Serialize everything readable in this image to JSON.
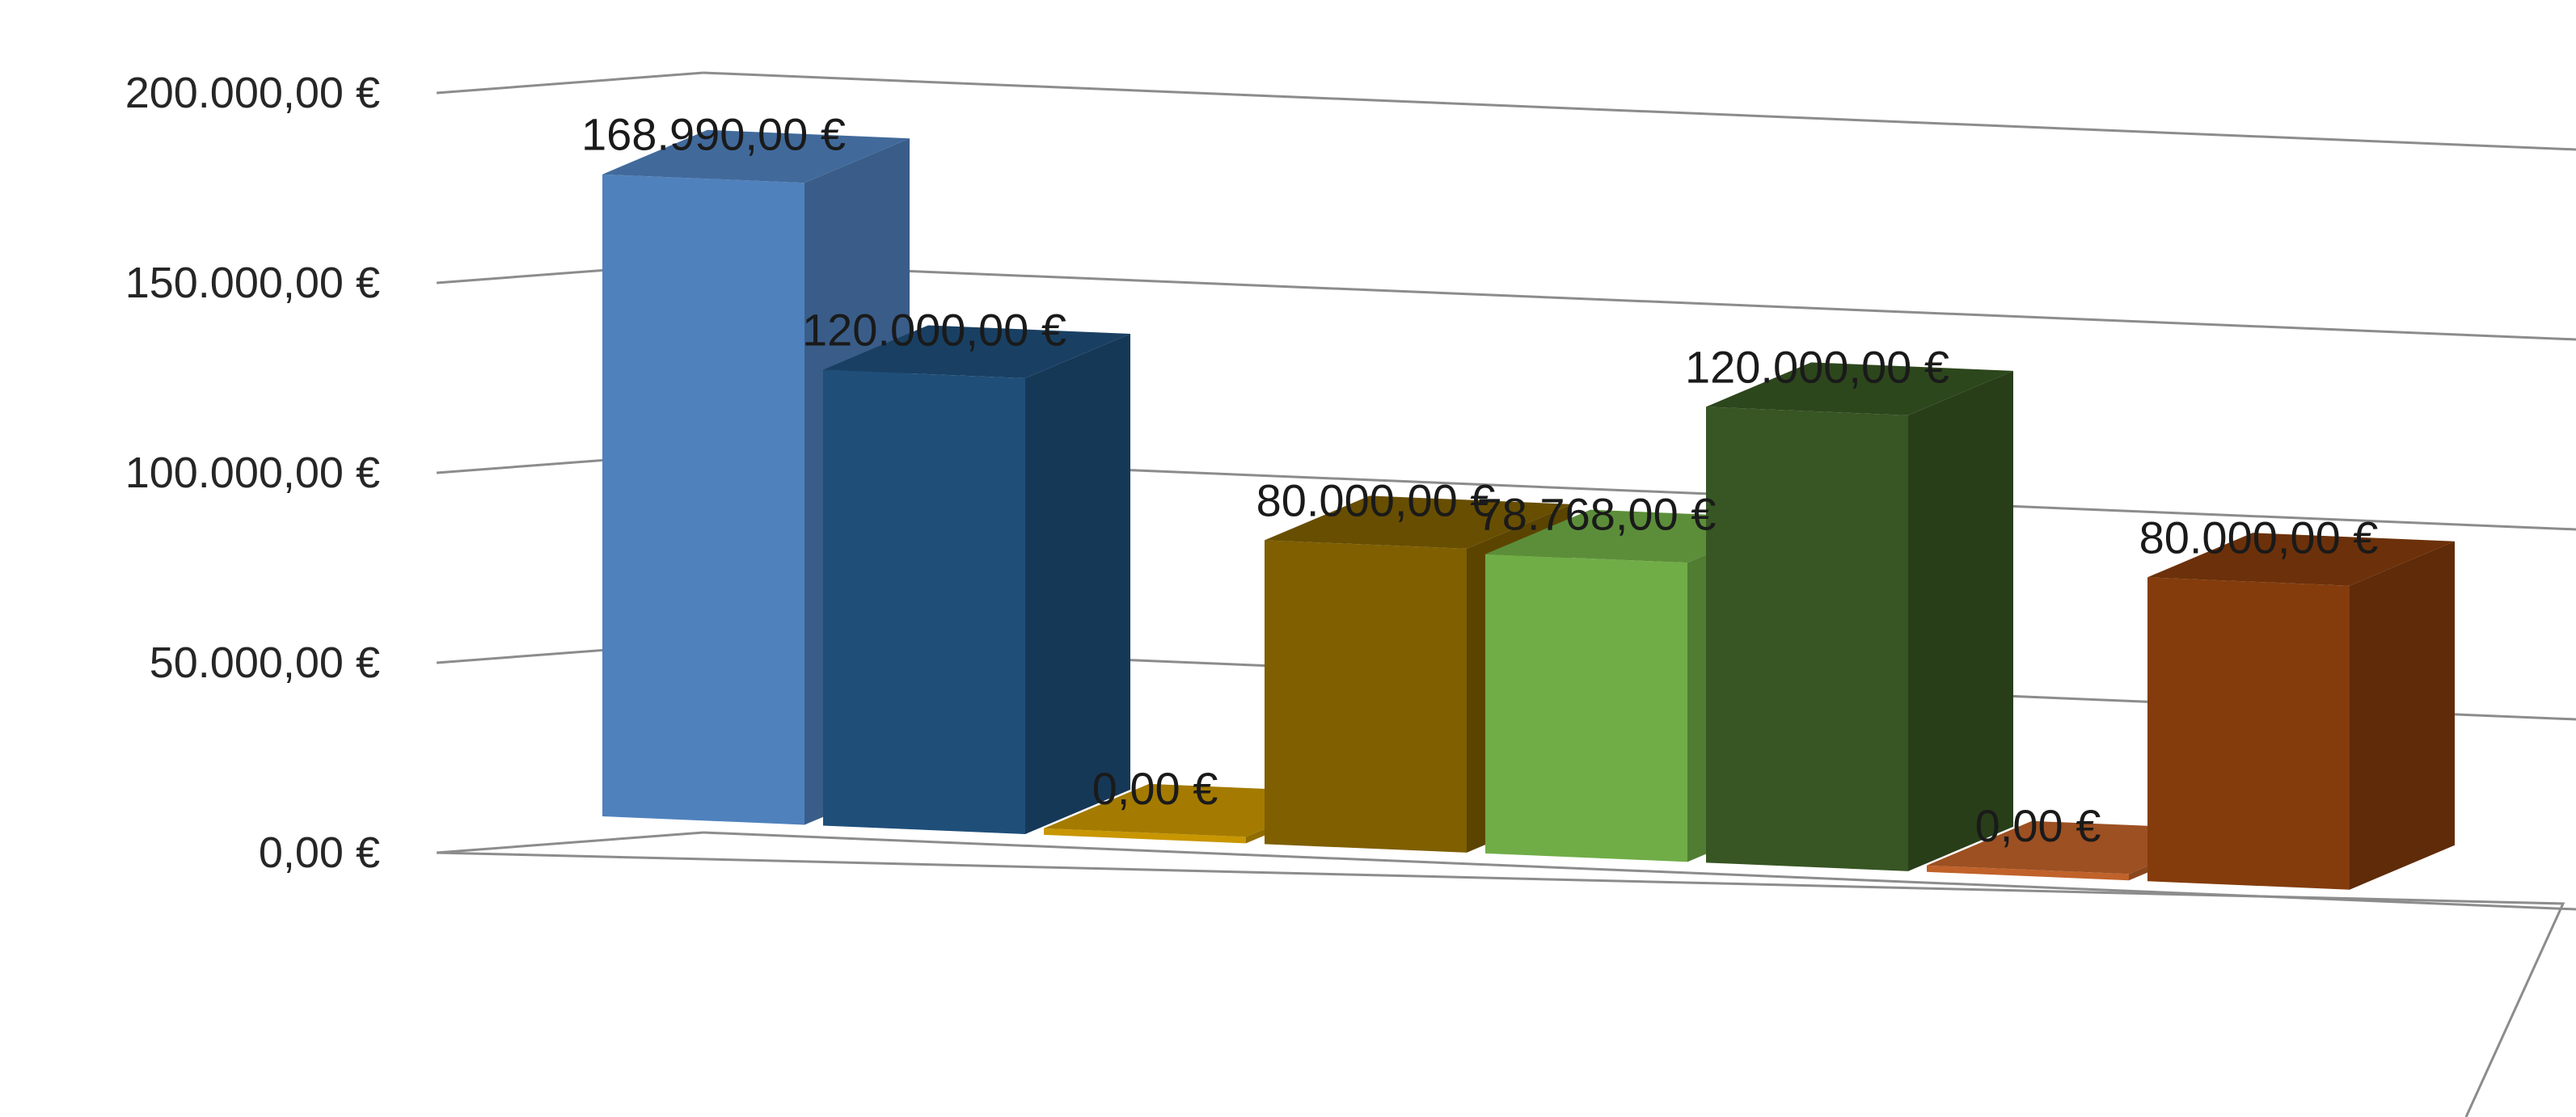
{
  "chart_data": {
    "type": "bar",
    "three_d": true,
    "grid": true,
    "legend": "none",
    "y_axis": {
      "min": 0,
      "max": 200000,
      "ticks": [
        {
          "value": 0,
          "label": "0,00 €"
        },
        {
          "value": 50000,
          "label": "50.000,00 €"
        },
        {
          "value": 100000,
          "label": "100.000,00 €"
        },
        {
          "value": 150000,
          "label": "150.000,00 €"
        },
        {
          "value": 200000,
          "label": "200.000,00 €"
        }
      ]
    },
    "bars": [
      {
        "value": 168990,
        "label": "168.990,00 €",
        "color": "#4f81bd"
      },
      {
        "value": 120000,
        "label": "120.000,00 €",
        "color": "#1f4e79"
      },
      {
        "value": 0,
        "label": "0,00 €",
        "color": "#c89600"
      },
      {
        "value": 80000,
        "label": "80.000,00 €",
        "color": "#7f5f00"
      },
      {
        "value": 78768,
        "label": "78.768,00 €",
        "color": "#70ad47"
      },
      {
        "value": 120000,
        "label": "120.000,00 €",
        "color": "#375623"
      },
      {
        "value": 0,
        "label": "0,00 €",
        "color": "#c0622a"
      },
      {
        "value": 80000,
        "label": "80.000,00 €",
        "color": "#843c0c"
      }
    ]
  }
}
